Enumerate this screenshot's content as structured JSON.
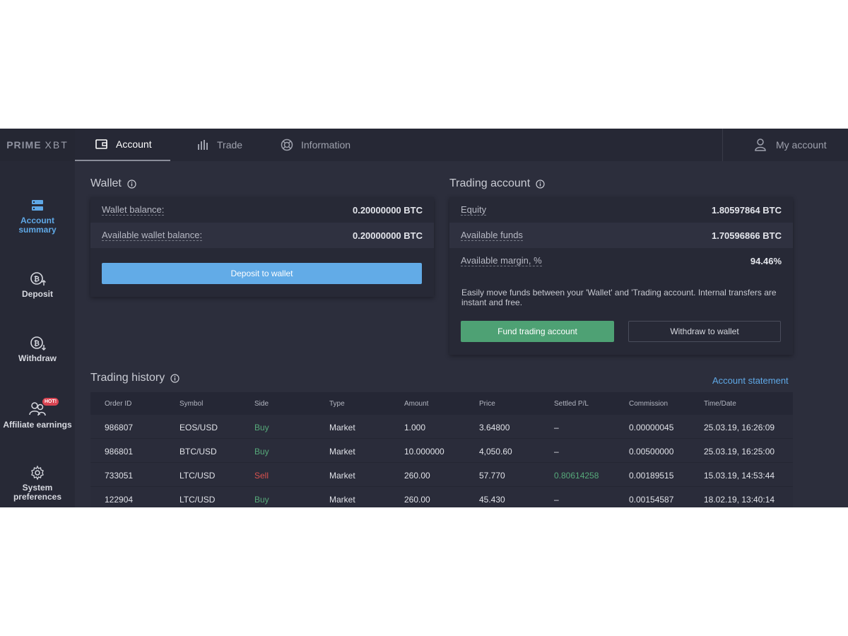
{
  "brand": {
    "name_left": "PRIME",
    "name_right": "XBT"
  },
  "topnav": {
    "tabs": [
      {
        "label": "Account",
        "icon": "wallet-icon"
      },
      {
        "label": "Trade",
        "icon": "bar-chart-icon"
      },
      {
        "label": "Information",
        "icon": "lifebuoy-icon"
      }
    ],
    "my_account": "My account"
  },
  "sidebar": {
    "items": [
      {
        "label_1": "Account",
        "label_2": "summary",
        "icon": "account-summary-icon"
      },
      {
        "label": "Deposit",
        "icon": "deposit-bitcoin-icon"
      },
      {
        "label": "Withdraw",
        "icon": "withdraw-bitcoin-icon"
      },
      {
        "label": "Affiliate earnings",
        "icon": "affiliate-users-icon",
        "badge": "HOT!"
      },
      {
        "label_1": "System",
        "label_2": "preferences",
        "icon": "gear-icon"
      }
    ]
  },
  "wallet": {
    "title": "Wallet",
    "balance_label": "Wallet balance:",
    "balance_value": "0.20000000 BTC",
    "available_label": "Available wallet balance:",
    "available_value": "0.20000000 BTC",
    "deposit_button": "Deposit to wallet"
  },
  "trading_account": {
    "title": "Trading account",
    "equity_label": "Equity",
    "equity_value": "1.80597864 BTC",
    "funds_label": "Available funds",
    "funds_value": "1.70596866 BTC",
    "margin_label": "Available margin, %",
    "margin_value": "94.46%",
    "note": "Easily move funds between your 'Wallet' and 'Trading account. Internal transfers are instant and free.",
    "fund_button": "Fund trading account",
    "withdraw_button": "Withdraw to wallet"
  },
  "trading_history": {
    "title": "Trading history",
    "statement_link": "Account statement",
    "columns": [
      "Order ID",
      "Symbol",
      "Side",
      "Type",
      "Amount",
      "Price",
      "Settled P/L",
      "Commission",
      "Time/Date"
    ],
    "rows": [
      {
        "order_id": "986807",
        "symbol": "EOS/USD",
        "side": "Buy",
        "type": "Market",
        "amount": "1.000",
        "price": "3.64800",
        "pl": "–",
        "commission": "0.00000045",
        "time": "25.03.19, 16:26:09"
      },
      {
        "order_id": "986801",
        "symbol": "BTC/USD",
        "side": "Buy",
        "type": "Market",
        "amount": "10.000000",
        "price": "4,050.60",
        "pl": "–",
        "commission": "0.00500000",
        "time": "25.03.19, 16:25:00"
      },
      {
        "order_id": "733051",
        "symbol": "LTC/USD",
        "side": "Sell",
        "type": "Market",
        "amount": "260.00",
        "price": "57.770",
        "pl": "0.80614258",
        "commission": "0.00189515",
        "time": "15.03.19, 14:53:44"
      },
      {
        "order_id": "122904",
        "symbol": "LTC/USD",
        "side": "Buy",
        "type": "Market",
        "amount": "260.00",
        "price": "45.430",
        "pl": "–",
        "commission": "0.00154587",
        "time": "18.02.19, 13:40:14"
      }
    ]
  },
  "colors": {
    "accent_blue": "#62abe7",
    "buy_green": "#56a97a",
    "sell_red": "#d9524f",
    "fund_green": "#4ea174"
  }
}
